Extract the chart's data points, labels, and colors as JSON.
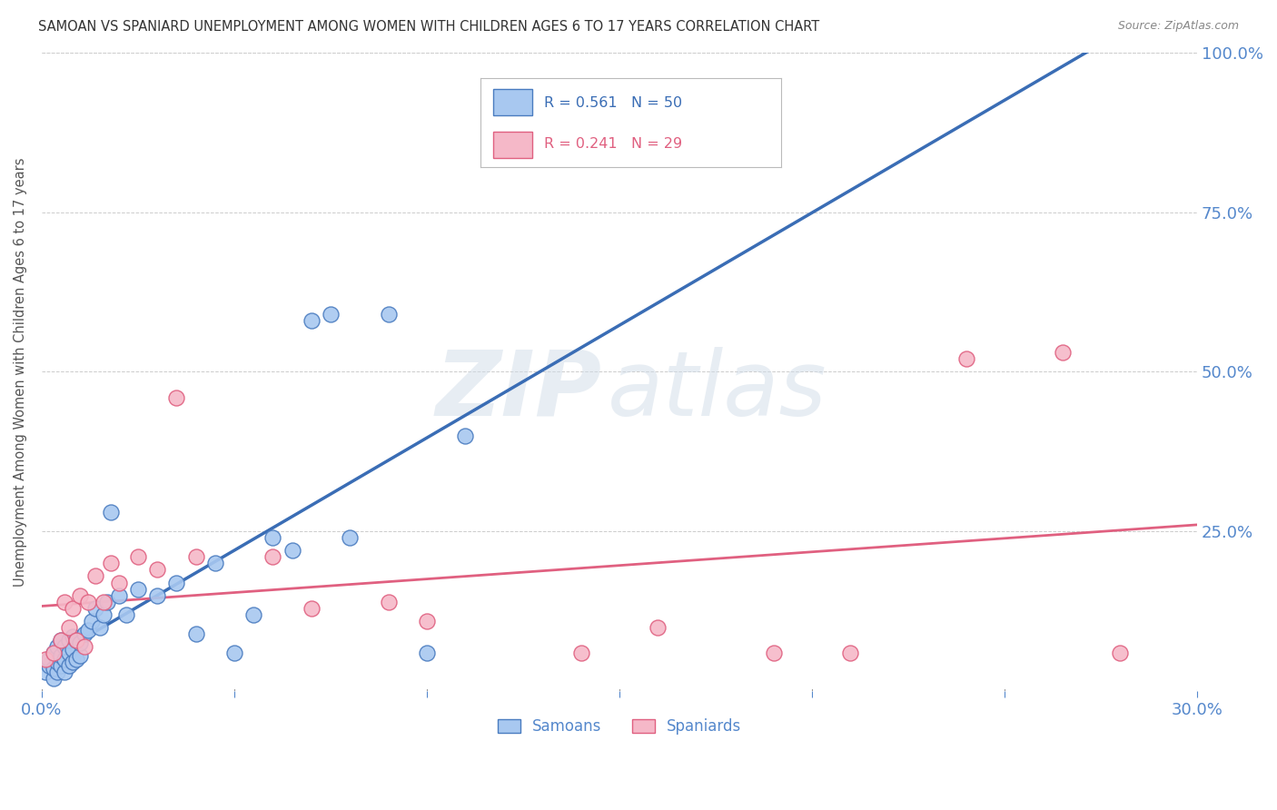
{
  "title": "SAMOAN VS SPANIARD UNEMPLOYMENT AMONG WOMEN WITH CHILDREN AGES 6 TO 17 YEARS CORRELATION CHART",
  "source": "Source: ZipAtlas.com",
  "ylabel": "Unemployment Among Women with Children Ages 6 to 17 years",
  "xlim": [
    0.0,
    0.3
  ],
  "ylim": [
    0.0,
    1.0
  ],
  "x_ticks": [
    0.0,
    0.05,
    0.1,
    0.15,
    0.2,
    0.25,
    0.3
  ],
  "y_ticks": [
    0.0,
    0.25,
    0.5,
    0.75,
    1.0
  ],
  "samoans_color": "#a8c8f0",
  "spaniards_color": "#f5b8c8",
  "samoans_edge_color": "#4a7cc0",
  "spaniards_edge_color": "#e06080",
  "samoans_line_color": "#3a6db5",
  "spaniards_line_color": "#e06080",
  "dashed_line_color": "#bbbbbb",
  "R_samoans": 0.561,
  "N_samoans": 50,
  "R_spaniards": 0.241,
  "N_spaniards": 29,
  "samoans_x": [
    0.001,
    0.002,
    0.002,
    0.003,
    0.003,
    0.003,
    0.004,
    0.004,
    0.004,
    0.005,
    0.005,
    0.005,
    0.006,
    0.006,
    0.006,
    0.007,
    0.007,
    0.007,
    0.008,
    0.008,
    0.008,
    0.009,
    0.009,
    0.01,
    0.01,
    0.011,
    0.012,
    0.013,
    0.014,
    0.015,
    0.016,
    0.017,
    0.018,
    0.02,
    0.022,
    0.025,
    0.03,
    0.035,
    0.04,
    0.045,
    0.05,
    0.055,
    0.06,
    0.065,
    0.07,
    0.075,
    0.08,
    0.09,
    0.1,
    0.11
  ],
  "samoans_y": [
    0.03,
    0.04,
    0.05,
    0.02,
    0.035,
    0.06,
    0.03,
    0.045,
    0.07,
    0.04,
    0.055,
    0.08,
    0.03,
    0.05,
    0.07,
    0.04,
    0.06,
    0.08,
    0.045,
    0.065,
    0.085,
    0.05,
    0.08,
    0.055,
    0.075,
    0.09,
    0.095,
    0.11,
    0.13,
    0.1,
    0.12,
    0.14,
    0.28,
    0.15,
    0.12,
    0.16,
    0.15,
    0.17,
    0.09,
    0.2,
    0.06,
    0.12,
    0.24,
    0.22,
    0.58,
    0.59,
    0.24,
    0.59,
    0.06,
    0.4
  ],
  "spaniards_x": [
    0.001,
    0.003,
    0.005,
    0.006,
    0.007,
    0.008,
    0.009,
    0.01,
    0.011,
    0.012,
    0.014,
    0.016,
    0.018,
    0.02,
    0.025,
    0.03,
    0.035,
    0.04,
    0.06,
    0.07,
    0.09,
    0.1,
    0.14,
    0.16,
    0.19,
    0.21,
    0.24,
    0.265,
    0.28
  ],
  "spaniards_y": [
    0.05,
    0.06,
    0.08,
    0.14,
    0.1,
    0.13,
    0.08,
    0.15,
    0.07,
    0.14,
    0.18,
    0.14,
    0.2,
    0.17,
    0.21,
    0.19,
    0.46,
    0.21,
    0.21,
    0.13,
    0.14,
    0.11,
    0.06,
    0.1,
    0.06,
    0.06,
    0.52,
    0.53,
    0.06
  ],
  "watermark_zip_color": "#c8d8e8",
  "watermark_atlas_color": "#c8d8e8",
  "background_color": "#ffffff",
  "grid_color": "#cccccc",
  "tick_label_color": "#5588cc",
  "ylabel_color": "#555555",
  "title_color": "#333333",
  "source_color": "#888888"
}
